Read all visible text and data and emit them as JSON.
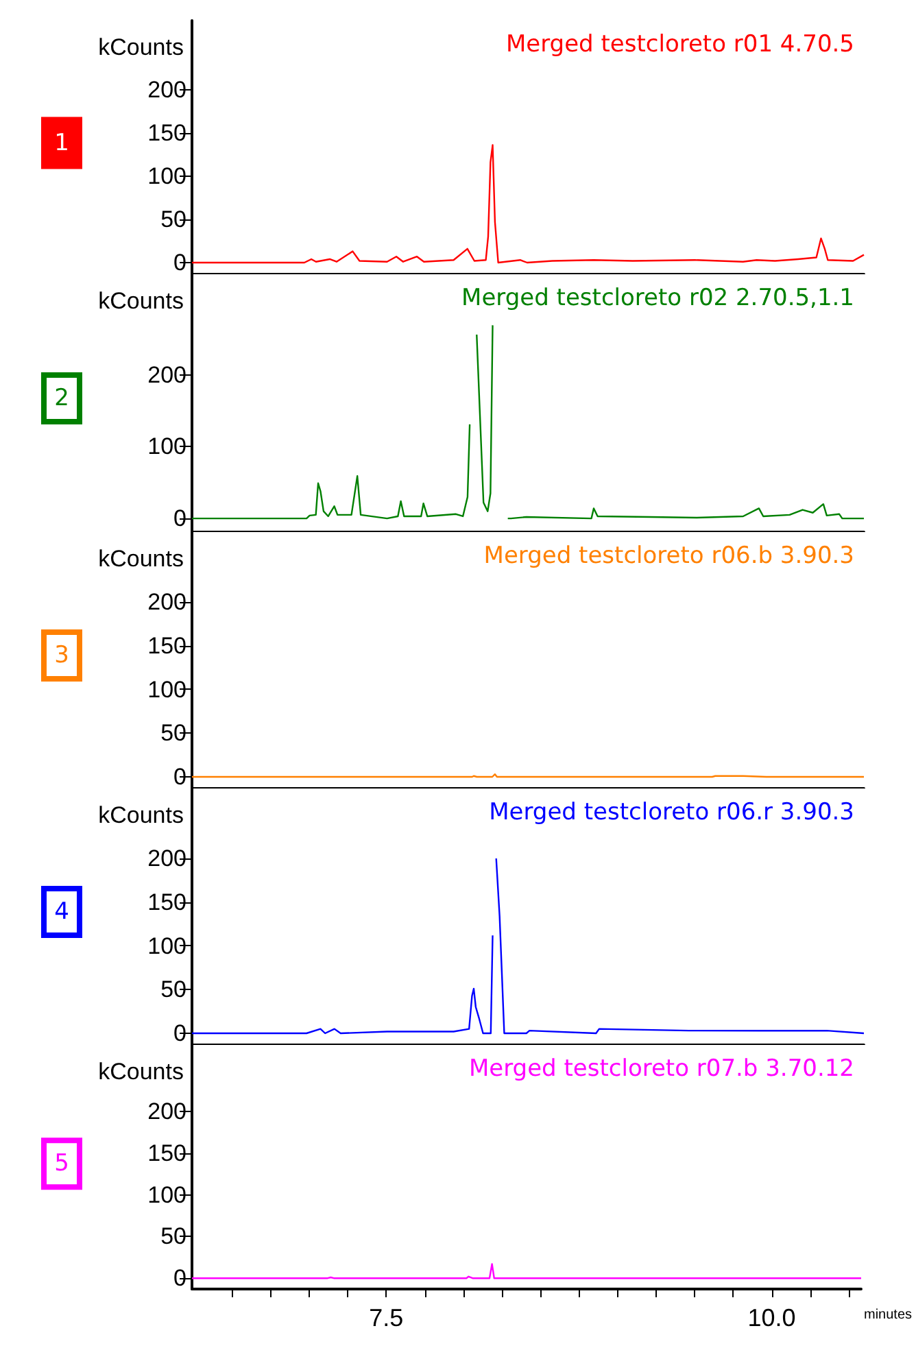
{
  "chart_data": [
    {
      "type": "line",
      "title": "Merged testcloreto r01 4.70.5",
      "ylabel": "kCounts",
      "annotations": [
        "1"
      ],
      "tick_labels": "y",
      "xlim": [
        6.24,
        10.58
      ],
      "ylim": [
        -13,
        280
      ],
      "yticks": [
        0,
        50,
        100,
        150,
        200
      ],
      "series": [
        {
          "color": "#ff0000",
          "x": [
            6.24,
            6.966,
            7.011,
            7.041,
            7.13,
            7.174,
            7.278,
            7.322,
            7.5,
            7.56,
            7.604,
            7.693,
            7.738,
            7.93,
            8.019,
            8.064,
            8.138,
            8.153,
            8.168,
            8.182,
            8.197,
            8.218,
            8.36,
            8.405,
            8.568,
            8.835,
            9.087,
            9.487,
            9.799,
            9.887,
            10.006,
            10.155,
            10.273,
            10.303,
            10.327,
            10.347,
            10.51,
            10.58
          ],
          "values": [
            0,
            0,
            4,
            1,
            4,
            1,
            13,
            2,
            1,
            7,
            1,
            7,
            1,
            3,
            16,
            2,
            3,
            30,
            116,
            136,
            47,
            0,
            3,
            0,
            2,
            3,
            2,
            3,
            1,
            3,
            2,
            4,
            6,
            28,
            16,
            3,
            2,
            9
          ]
        }
      ]
    },
    {
      "type": "line",
      "title": "Merged testcloreto r02 2.70.5,1.1",
      "ylabel": "kCounts",
      "annotations": [
        "2"
      ],
      "tick_labels": "y",
      "xlim": [
        6.24,
        10.58
      ],
      "ylim": [
        -19,
        340
      ],
      "yticks": [
        0,
        100,
        200
      ],
      "series": [
        {
          "color": "#008000",
          "x": [
            6.24,
            6.98,
            7.0,
            7.04,
            7.055,
            7.07,
            7.09,
            7.12,
            7.159,
            7.18,
            7.27,
            7.308,
            7.33,
            7.5,
            7.57,
            7.589,
            7.61,
            7.72,
            7.735,
            7.76,
            7.945,
            7.99,
            8.02,
            8.034,
            8.045,
            8.07,
            8.079,
            8.123,
            8.15,
            8.168,
            8.182,
            8.197,
            8.27,
            8.28,
            8.3,
            8.4,
            8.82,
            8.835,
            8.86,
            9.2,
            9.5,
            9.8,
            9.902,
            9.93,
            10.1,
            10.184,
            10.25,
            10.318,
            10.34,
            10.421,
            10.44,
            10.58
          ],
          "values": [
            0,
            0,
            4,
            5,
            49,
            38,
            10,
            3,
            17,
            5,
            5,
            59,
            5,
            0,
            3,
            24,
            3,
            3,
            21,
            3,
            6,
            3,
            30,
            131,
            null,
            null,
            256,
            22,
            10,
            35,
            269,
            null,
            null,
            0,
            0,
            2,
            0,
            14,
            3,
            2,
            1,
            3,
            14,
            3,
            5,
            12,
            8,
            20,
            4,
            6,
            0,
            0
          ]
        }
      ]
    },
    {
      "type": "line",
      "title": "Merged testcloreto r06.b 3.90.3",
      "ylabel": "kCounts",
      "annotations": [
        "3"
      ],
      "tick_labels": "y",
      "xlim": [
        6.24,
        10.58
      ],
      "ylim": [
        -13,
        280
      ],
      "yticks": [
        0,
        50,
        100,
        150,
        200
      ],
      "series": [
        {
          "color": "#ff8000",
          "x": [
            6.24,
            8.05,
            8.06,
            8.08,
            8.18,
            8.197,
            8.21,
            9.6,
            9.62,
            9.8,
            9.95,
            10.58
          ],
          "values": [
            0,
            0,
            1,
            0,
            0,
            3,
            0,
            0,
            1,
            1,
            0,
            0
          ]
        }
      ]
    },
    {
      "type": "line",
      "title": "Merged testcloreto r06.r 3.90.3",
      "ylabel": "kCounts",
      "annotations": [
        "4"
      ],
      "tick_labels": "y",
      "xlim": [
        6.24,
        10.58
      ],
      "ylim": [
        -13,
        280
      ],
      "yticks": [
        0,
        50,
        100,
        150,
        200
      ],
      "series": [
        {
          "color": "#0000ff",
          "x": [
            6.24,
            6.98,
            7.07,
            7.1,
            7.16,
            7.2,
            7.5,
            7.7,
            7.93,
            8.03,
            8.049,
            8.06,
            8.073,
            8.093,
            8.12,
            8.17,
            8.182,
            8.19,
            8.197,
            8.205,
            8.227,
            8.257,
            8.4,
            8.42,
            8.85,
            8.87,
            9.45,
            9.92,
            10.34,
            10.58
          ],
          "values": [
            0,
            0,
            5,
            0,
            5,
            0,
            2,
            2,
            2,
            5,
            43,
            51,
            30,
            18,
            0,
            0,
            112,
            null,
            null,
            200,
            134,
            0,
            0,
            3,
            0,
            5,
            3,
            3,
            3,
            0
          ]
        }
      ]
    },
    {
      "type": "line",
      "title": "Merged testcloreto r07.b 3.70.12",
      "ylabel": "kCounts",
      "xlabel": "minutes",
      "annotations": [
        "5"
      ],
      "xlim": [
        6.24,
        10.58
      ],
      "ylim": [
        -13,
        280
      ],
      "yticks": [
        0,
        50,
        100,
        150,
        200
      ],
      "xticks": [
        {
          "value": 6.5,
          "label": null
        },
        {
          "value": 6.75,
          "label": null
        },
        {
          "value": 7.0,
          "label": null
        },
        {
          "value": 7.25,
          "label": null
        },
        7.5,
        {
          "value": 7.75,
          "label": null
        },
        {
          "value": 8.0,
          "label": null
        },
        {
          "value": 8.25,
          "label": null
        },
        {
          "value": 8.5,
          "label": null
        },
        {
          "value": 8.75,
          "label": null
        },
        {
          "value": 9.0,
          "label": null
        },
        {
          "value": 9.25,
          "label": null
        },
        {
          "value": 9.5,
          "label": null
        },
        {
          "value": 9.75,
          "label": null
        },
        {
          "value": 10.0,
          "label": "10.0"
        },
        {
          "value": 10.25,
          "label": null
        },
        {
          "value": 10.5,
          "label": null
        }
      ],
      "series": [
        {
          "color": "#ff00ff",
          "x": [
            6.24,
            7.12,
            7.14,
            7.16,
            8.02,
            8.034,
            8.06,
            8.17,
            8.186,
            8.2,
            10.58
          ],
          "values": [
            0,
            0,
            1,
            0,
            0,
            2,
            0,
            0,
            17,
            0,
            0
          ]
        }
      ]
    }
  ]
}
